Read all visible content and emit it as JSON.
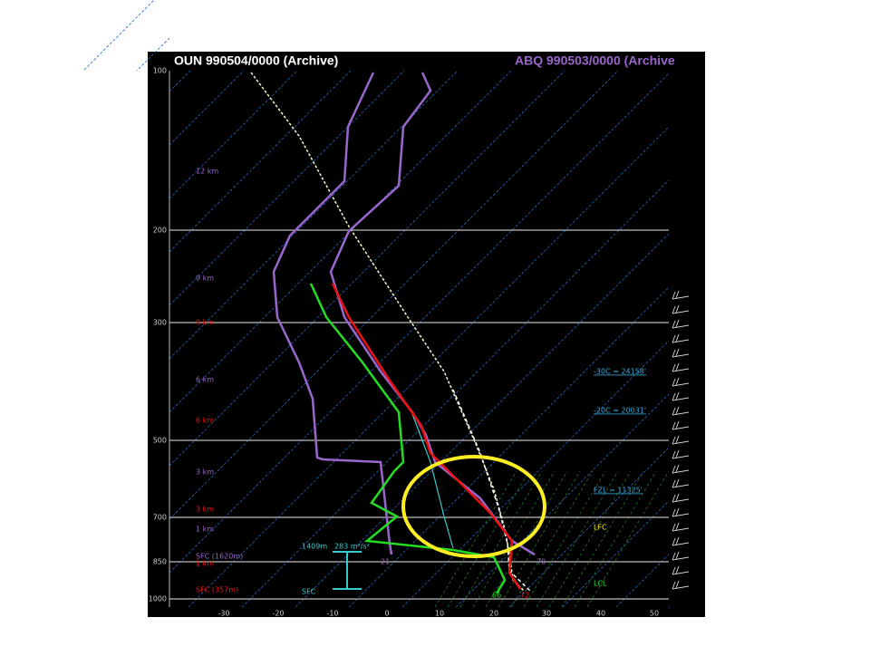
{
  "header": {
    "primary": "OUN  990504/0000  (Archive)",
    "secondary": "ABQ  990503/0000  (Archive"
  },
  "pressure_labels": [
    100,
    200,
    300,
    500,
    700,
    850,
    1000
  ],
  "temperature_labels": [
    -30,
    -20,
    -10,
    0,
    10,
    20,
    30,
    40,
    50
  ],
  "heights_secondary": [
    "12 km",
    "9 km",
    "6 km",
    "3 km",
    "1 km",
    "SFC (1620m)"
  ],
  "heights_primary": [
    "9 km",
    "6 km",
    "3 km",
    "1 km",
    "SFC (357m)"
  ],
  "annotations": {
    "minus30": "-30C = 24158'",
    "minus20": "-20C = 20031'",
    "fzl": "FZL = 11325'",
    "lfc": "LFC",
    "lcl": "LCL",
    "helicity_depth": "1409m",
    "helicity": "283 m²/s²",
    "sfc": "SFC",
    "sec_dew_sfc": "21",
    "sec_temp_sfc": "70",
    "pri_dew_sfc": "66",
    "pri_temp_sfc": "72"
  }
}
